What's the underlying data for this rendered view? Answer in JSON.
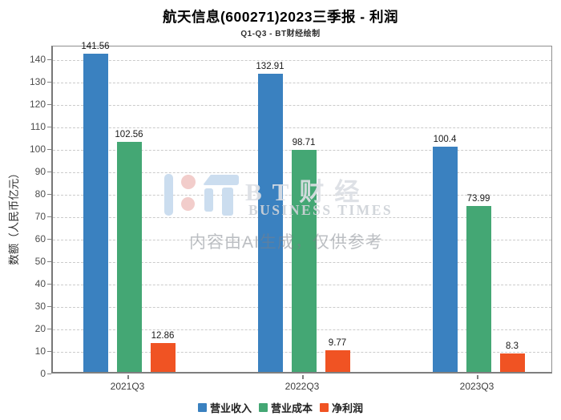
{
  "chart_data": {
    "type": "bar",
    "title": "航天信息(600271)2023三季报 - 利润",
    "subtitle": "Q1-Q3 - BT财经绘制",
    "ylabel": "数额（人民币亿元）",
    "xlabel": "",
    "categories": [
      "2021Q3",
      "2022Q3",
      "2023Q3"
    ],
    "series": [
      {
        "name": "营业收入",
        "color": "#3a81c0",
        "values": [
          141.56,
          132.91,
          100.4
        ]
      },
      {
        "name": "营业成本",
        "color": "#44a774",
        "values": [
          102.56,
          98.71,
          73.99
        ]
      },
      {
        "name": "净利润",
        "color": "#f05323",
        "values": [
          12.86,
          9.77,
          8.3
        ]
      }
    ],
    "ylim": [
      0,
      146
    ],
    "yticks": [
      0,
      10,
      20,
      30,
      40,
      50,
      60,
      70,
      80,
      90,
      100,
      110,
      120,
      130,
      140
    ],
    "grid": true,
    "grid_style": "dashed",
    "legend_position": "bottom"
  },
  "watermark": {
    "brand_cn": "BT财经",
    "brand_en": "BUSINESS TIMES",
    "disclaimer": "内容由AI生成，仅供参考",
    "logo_colors": {
      "blue": "#cbddef",
      "pink": "#f2cdcb"
    }
  }
}
